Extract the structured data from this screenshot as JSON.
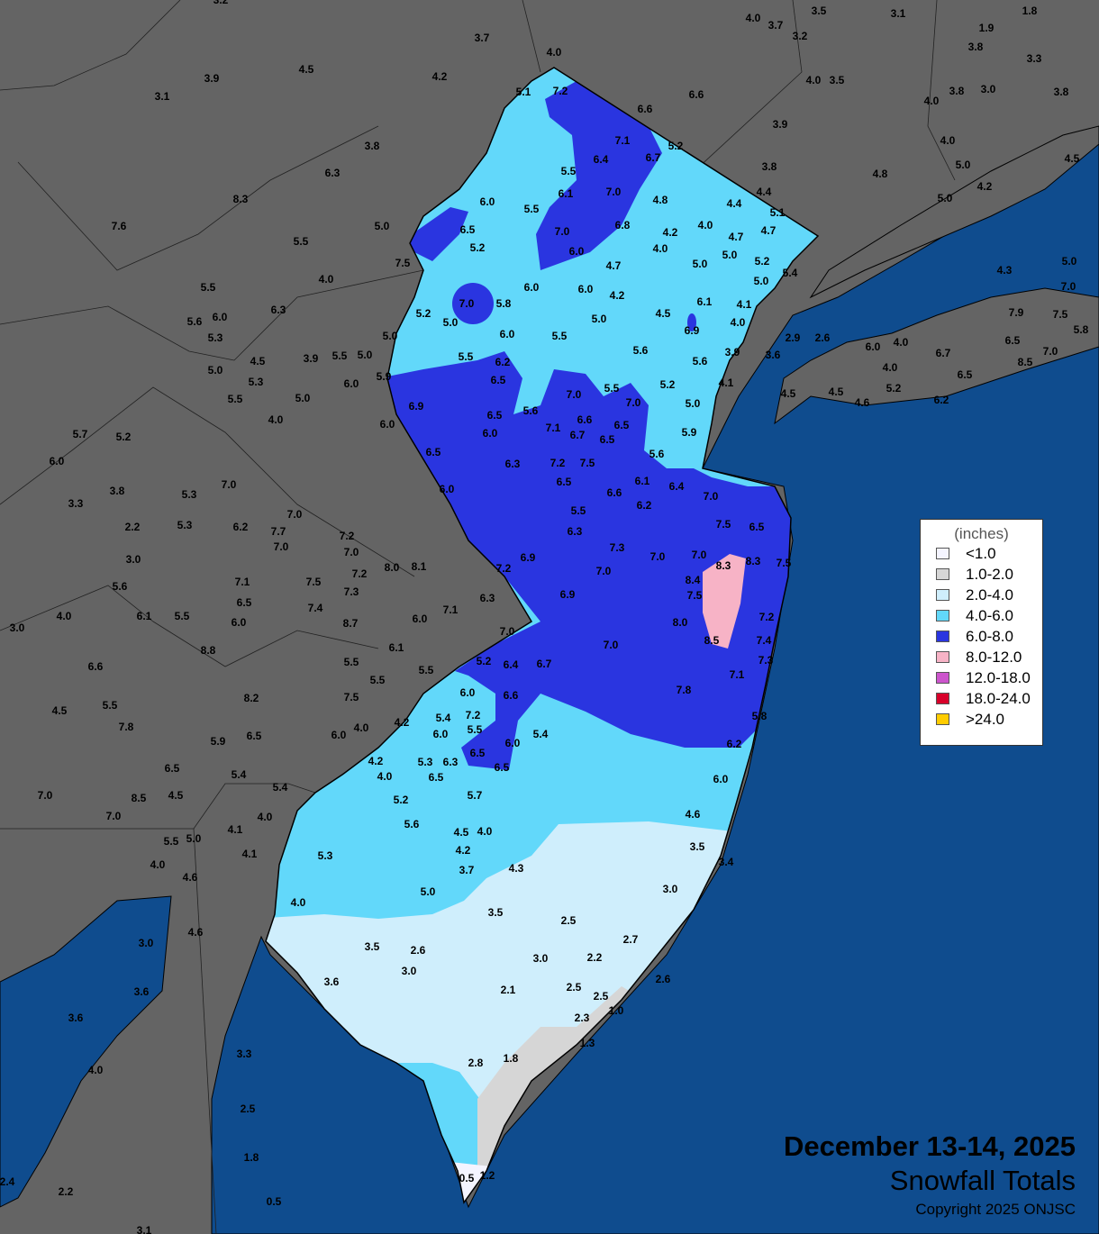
{
  "title": {
    "date": "December 13-14, 2025",
    "subtitle": "Snowfall Totals",
    "copyright": "Copyright 2025 ONJSC"
  },
  "legend": {
    "units": "(inches)",
    "items": [
      {
        "label": "<1.0",
        "color": "#f4f4ff"
      },
      {
        "label": "1.0-2.0",
        "color": "#d6d6d6"
      },
      {
        "label": "2.0-4.0",
        "color": "#cfeefc"
      },
      {
        "label": "4.0-6.0",
        "color": "#62d8fa"
      },
      {
        "label": "6.0-8.0",
        "color": "#2a35e0"
      },
      {
        "label": "8.0-12.0",
        "color": "#f7b3c6"
      },
      {
        "label": "12.0-18.0",
        "color": "#cc55cc"
      },
      {
        "label": "18.0-24.0",
        "color": "#d8002a"
      },
      {
        "label": ">24.0",
        "color": "#ffcc00"
      }
    ]
  },
  "colors": {
    "land": "#646464",
    "water": "#0f4c8e"
  },
  "stations": [
    "3.2",
    "3.7",
    "4.0",
    "4.0",
    "3.7",
    "3.5",
    "3.1",
    "1.8",
    "1.9",
    "3.8",
    "3.3",
    "3.2",
    "4.5",
    "4.2",
    "3.9",
    "3.1",
    "5.1",
    "7.2",
    "6.6",
    "6.6",
    "4.0",
    "3.5",
    "3.8",
    "3.0",
    "4.0",
    "3.8",
    "3.8",
    "6.3",
    "8.3",
    "7.1",
    "5.2",
    "6.4",
    "6.7",
    "3.9",
    "4.0",
    "3.8",
    "4.8",
    "5.0",
    "4.5",
    "5.5",
    "6.1",
    "7.0",
    "4.8",
    "6.0",
    "5.5",
    "4.4",
    "4.4",
    "5.0",
    "4.2",
    "5.1",
    "7.6",
    "5.0",
    "5.5",
    "6.5",
    "5.2",
    "7.0",
    "6.8",
    "4.2",
    "4.0",
    "4.7",
    "4.7",
    "6.0",
    "4.0",
    "5.0",
    "5.0",
    "5.2",
    "5.4",
    "4.7",
    "5.0",
    "7.5",
    "4.0",
    "4.3",
    "5.0",
    "7.0",
    "5.5",
    "6.3",
    "7.0",
    "5.8",
    "6.0",
    "6.0",
    "4.2",
    "6.1",
    "4.1",
    "5.6",
    "6.0",
    "5.3",
    "5.2",
    "5.0",
    "5.0",
    "4.5",
    "4.0",
    "6.9",
    "7.9",
    "7.5",
    "5.8",
    "5.0",
    "6.0",
    "5.5",
    "2.9",
    "2.6",
    "6.0",
    "4.0",
    "6.7",
    "6.5",
    "7.0",
    "8.5",
    "4.5",
    "3.9",
    "5.5",
    "5.0",
    "5.5",
    "6.2",
    "5.6",
    "3.9",
    "3.6",
    "5.6",
    "5.0",
    "5.3",
    "6.0",
    "5.9",
    "6.5",
    "4.0",
    "6.5",
    "4.1",
    "5.2",
    "5.5",
    "7.0",
    "7.0",
    "4.5",
    "4.5",
    "4.6",
    "5.2",
    "6.2",
    "5.5",
    "5.0",
    "4.0",
    "6.9",
    "6.5",
    "5.6",
    "6.6",
    "6.5",
    "5.0",
    "6.0",
    "7.1",
    "6.7",
    "6.5",
    "6.0",
    "5.9",
    "5.7",
    "5.2",
    "6.5",
    "5.6",
    "6.0",
    "6.3",
    "7.2",
    "7.5",
    "6.5",
    "6.1",
    "6.4",
    "6.6",
    "6.0",
    "7.0",
    "6.2",
    "3.8",
    "7.0",
    "5.3",
    "3.3",
    "5.5",
    "7.5",
    "6.5",
    "6.3",
    "7.0",
    "2.2",
    "5.3",
    "6.2",
    "7.7",
    "7.2",
    "7.0",
    "7.0",
    "7.3",
    "7.0",
    "8.3",
    "8.3",
    "7.5",
    "6.9",
    "7.0",
    "7.2",
    "3.0",
    "7.2",
    "8.0",
    "8.1",
    "7.0",
    "5.6",
    "7.1",
    "7.5",
    "7.3",
    "8.4",
    "6.9",
    "7.5",
    "6.3",
    "6.5",
    "7.4",
    "7.1",
    "3.0",
    "4.0",
    "6.1",
    "5.5",
    "6.0",
    "8.7",
    "6.0",
    "7.2",
    "8.0",
    "7.0",
    "8.5",
    "7.4",
    "6.1",
    "8.8",
    "7.0",
    "7.3",
    "5.2",
    "6.4",
    "6.7",
    "5.5",
    "6.6",
    "5.5",
    "5.5",
    "7.1",
    "7.8",
    "6.0",
    "6.6",
    "8.2",
    "7.5",
    "5.5",
    "4.5",
    "4.2",
    "4.0",
    "5.4",
    "7.2",
    "5.5",
    "7.8",
    "5.8",
    "6.0",
    "5.4",
    "6.0",
    "6.5",
    "5.9",
    "6.0",
    "6.2",
    "6.5",
    "4.2",
    "5.3",
    "6.3",
    "6.5",
    "6.5",
    "6.5",
    "4.0",
    "5.4",
    "5.4",
    "6.0",
    "7.0",
    "8.5",
    "4.5",
    "5.7",
    "5.2",
    "7.0",
    "4.0",
    "4.6",
    "5.6",
    "4.1",
    "4.5",
    "4.0",
    "5.5",
    "5.0",
    "4.1",
    "3.5",
    "4.2",
    "5.3",
    "4.0",
    "4.6",
    "3.4",
    "3.7",
    "4.3",
    "3.0",
    "5.0",
    "4.0",
    "4.6",
    "3.5",
    "2.5",
    "3.0",
    "2.7",
    "3.5",
    "2.6",
    "3.0",
    "2.2",
    "3.0",
    "3.6",
    "2.6",
    "3.6",
    "2.1",
    "2.5",
    "2.5",
    "1.0",
    "3.6",
    "2.3",
    "1.3",
    "3.3",
    "1.8",
    "2.8",
    "4.0",
    "2.5",
    "1.8",
    "2.4",
    "0.5",
    "1.2",
    "2.2",
    "0.5",
    "3.1"
  ]
}
